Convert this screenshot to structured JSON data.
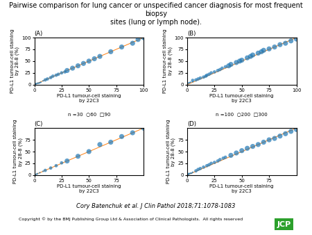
{
  "title": "Pairwise comparison for lung cancer or unspecified cancer diagnosis for most frequent biopsy\nsites (lung or lymph node).",
  "annotations": [
    "Cory Batenchuk et al. J Clin Pathol 2018;71:1078-1083",
    "Copyright © by the BMJ Publishing Group Ltd & Association of Clinical Pathologists.  All rights reserved",
    "JCP"
  ],
  "chart_data": [
    {
      "type": "scatter",
      "title": "(A)",
      "x_label": "PD-L1 tumour-cell staining\nby 22C3",
      "y_label": "PD-L1 tumour-cell staining\nby 28-8 (%)",
      "x": [
        0,
        0,
        0,
        0,
        0,
        1,
        1,
        2,
        3,
        4,
        5,
        6,
        8,
        10,
        12,
        15,
        17,
        20,
        22,
        25,
        28,
        30,
        35,
        40,
        45,
        50,
        55,
        60,
        70,
        80,
        90,
        95,
        100
      ],
      "series": [
        {
          "values": [
            0,
            0,
            0,
            0,
            1,
            0,
            2,
            2,
            3,
            3,
            4,
            5,
            8,
            10,
            12,
            15,
            18,
            20,
            22,
            25,
            27,
            30,
            35,
            40,
            45,
            50,
            55,
            60,
            70,
            80,
            88,
            96,
            100
          ],
          "sizes": [
            1,
            1,
            1,
            1,
            1,
            1,
            1,
            1,
            1,
            1,
            1,
            1,
            1,
            2,
            2,
            2,
            2,
            2,
            2,
            2,
            2,
            3,
            3,
            3,
            3,
            3,
            3,
            3,
            3,
            3,
            3,
            3,
            3
          ]
        }
      ],
      "reference_line": {
        "x": [
          0,
          100
        ],
        "y": [
          0,
          100
        ]
      },
      "xlim": [
        0,
        100
      ],
      "xticks": [
        0,
        25,
        50,
        75,
        100
      ],
      "ylim": [
        0,
        100
      ],
      "yticks": [
        0,
        25,
        50,
        75,
        100
      ],
      "annotations": [
        "n =30  ○60  □90"
      ]
    },
    {
      "type": "scatter",
      "title": "(B)",
      "x_label": "PD-L1 tumour-cell staining\nby 22C3",
      "y_label": "PD-L1 tumour-cell staining\nby 28-8 (%)",
      "x": [
        0,
        0,
        0,
        0,
        1,
        2,
        3,
        5,
        5,
        8,
        10,
        12,
        15,
        17,
        18,
        20,
        22,
        25,
        28,
        30,
        32,
        35,
        38,
        40,
        45,
        48,
        50,
        55,
        58,
        60,
        65,
        68,
        70,
        75,
        80,
        85,
        90,
        95,
        100
      ],
      "series": [
        {
          "values": [
            0,
            1,
            2,
            4,
            3,
            4,
            5,
            6,
            9,
            10,
            12,
            14,
            16,
            18,
            20,
            22,
            25,
            27,
            30,
            32,
            35,
            38,
            40,
            43,
            47,
            50,
            52,
            57,
            60,
            63,
            67,
            70,
            73,
            76,
            80,
            85,
            88,
            93,
            97
          ],
          "sizes": [
            1,
            1,
            1,
            1,
            1,
            1,
            1,
            1,
            2,
            2,
            2,
            2,
            2,
            2,
            2,
            2,
            2,
            2,
            2,
            2,
            2,
            2,
            3,
            3,
            3,
            3,
            3,
            3,
            3,
            3,
            3,
            3,
            3,
            3,
            3,
            3,
            3,
            3,
            3
          ]
        }
      ],
      "reference_line": {
        "x": [
          0,
          100
        ],
        "y": [
          0,
          100
        ]
      },
      "xlim": [
        0,
        100
      ],
      "xticks": [
        0,
        25,
        50,
        75,
        100
      ],
      "ylim": [
        0,
        100
      ],
      "yticks": [
        0,
        25,
        50,
        75,
        100
      ],
      "annotations": [
        "n =100  ○200  □300"
      ]
    },
    {
      "type": "scatter",
      "title": "(C)",
      "x_label": "PD-L1 tumour-cell staining\nby 22C3",
      "y_label": "PD-L1 tumour-cell staining\nby 28-8 (%)",
      "x": [
        0,
        0,
        1,
        2,
        3,
        5,
        8,
        10,
        15,
        20,
        25,
        30,
        40,
        50,
        60,
        70,
        80,
        90,
        100
      ],
      "series": [
        {
          "values": [
            0,
            1,
            1,
            2,
            3,
            5,
            8,
            10,
            15,
            20,
            26,
            30,
            40,
            50,
            65,
            70,
            82,
            90,
            100
          ],
          "sizes": [
            1,
            1,
            1,
            1,
            1,
            1,
            1,
            2,
            2,
            2,
            2,
            3,
            3,
            3,
            3,
            3,
            3,
            3,
            3
          ]
        }
      ],
      "reference_line": {
        "x": [
          0,
          100
        ],
        "y": [
          0,
          100
        ]
      },
      "xlim": [
        0,
        100
      ],
      "xticks": [
        0,
        25,
        50,
        75
      ],
      "ylim": [
        0,
        100
      ],
      "yticks": [
        0,
        25,
        50,
        75
      ]
    },
    {
      "type": "scatter",
      "title": "(D)",
      "x_label": "PD-L1 tumour-cell staining\nby 22C3",
      "y_label": "PD-L1 tumour-cell staining\nby 28-8 (%)",
      "x": [
        0,
        0,
        0,
        1,
        1,
        2,
        3,
        4,
        5,
        8,
        10,
        12,
        15,
        18,
        20,
        22,
        25,
        28,
        30,
        33,
        35,
        40,
        45,
        50,
        55,
        60,
        65,
        70,
        75,
        80,
        85,
        90,
        95,
        100
      ],
      "series": [
        {
          "values": [
            0,
            1,
            2,
            1,
            3,
            3,
            4,
            4,
            6,
            9,
            12,
            14,
            17,
            20,
            22,
            25,
            27,
            30,
            33,
            36,
            38,
            42,
            47,
            52,
            57,
            61,
            65,
            70,
            75,
            78,
            83,
            88,
            93,
            97
          ],
          "sizes": [
            1,
            1,
            1,
            1,
            1,
            1,
            1,
            1,
            1,
            2,
            2,
            2,
            2,
            2,
            2,
            2,
            2,
            2,
            2,
            2,
            2,
            3,
            3,
            3,
            3,
            3,
            3,
            3,
            3,
            3,
            3,
            3,
            3,
            3
          ]
        }
      ],
      "reference_line": {
        "x": [
          0,
          100
        ],
        "y": [
          0,
          100
        ]
      },
      "xlim": [
        0,
        100
      ],
      "xticks": [
        0,
        25,
        50,
        75
      ],
      "ylim": [
        0,
        100
      ],
      "yticks": [
        0,
        25,
        50,
        75
      ]
    }
  ]
}
